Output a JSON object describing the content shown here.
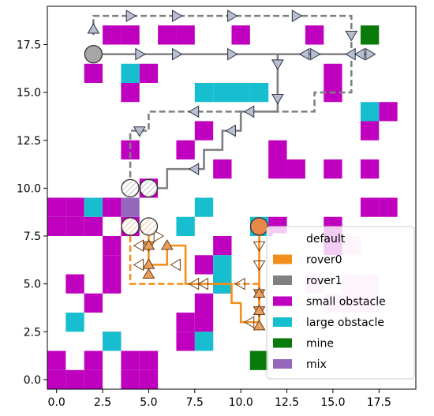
{
  "chart_data": {
    "type": "grid-map",
    "xlim": [
      -0.5,
      19.5
    ],
    "ylim": [
      -0.5,
      19.5
    ],
    "xticks": [
      0.0,
      2.5,
      5.0,
      7.5,
      10.0,
      12.5,
      15.0,
      17.5
    ],
    "yticks": [
      0.0,
      2.5,
      5.0,
      7.5,
      10.0,
      12.5,
      15.0,
      17.5
    ],
    "xtick_labels": [
      "0.0",
      "2.5",
      "5.0",
      "7.5",
      "10.0",
      "12.5",
      "15.0",
      "17.5"
    ],
    "ytick_labels": [
      "0.0",
      "2.5",
      "5.0",
      "7.5",
      "10.0",
      "12.5",
      "15.0",
      "17.5"
    ],
    "legend_position": "lower-right",
    "legend": [
      {
        "label": "default",
        "kind": "patch",
        "color": "#ffffff"
      },
      {
        "label": "rover0",
        "kind": "patch",
        "color": "#f28e1c"
      },
      {
        "label": "rover1",
        "kind": "patch",
        "color": "#808080"
      },
      {
        "label": "small obstacle",
        "kind": "patch",
        "color": "#bf00bf"
      },
      {
        "label": "large obstacle",
        "kind": "patch",
        "color": "#17becf"
      },
      {
        "label": "mine",
        "kind": "patch",
        "color": "#0a7a0a"
      },
      {
        "label": "mix",
        "kind": "patch",
        "color": "#9467bd"
      }
    ],
    "colors": {
      "small": "#bf00bf",
      "large": "#17becf",
      "mine": "#0a7a0a",
      "mix": "#9467bd",
      "rover0": "#f28e1c",
      "rover1": "#808080",
      "rover0_marker": "#e8a060",
      "rover1_marker": "#9aa0b0",
      "faint_small": "#f2c8ee",
      "faint_large": "#c8f2f4"
    },
    "cells": {
      "small": [
        [
          3,
          18
        ],
        [
          4,
          18
        ],
        [
          6,
          18
        ],
        [
          7,
          18
        ],
        [
          10,
          18
        ],
        [
          14,
          18
        ],
        [
          5,
          16
        ],
        [
          2,
          16
        ],
        [
          4,
          15
        ],
        [
          15,
          16
        ],
        [
          15,
          15
        ],
        [
          18,
          14
        ],
        [
          17,
          13
        ],
        [
          8,
          13
        ],
        [
          4,
          12
        ],
        [
          7,
          12
        ],
        [
          12,
          12
        ],
        [
          9,
          11
        ],
        [
          12,
          11
        ],
        [
          13,
          11
        ],
        [
          15,
          11
        ],
        [
          17,
          11
        ],
        [
          5,
          10
        ],
        [
          0,
          9
        ],
        [
          1,
          9
        ],
        [
          3,
          9
        ],
        [
          4,
          8
        ],
        [
          17,
          9
        ],
        [
          18,
          9
        ],
        [
          0,
          8
        ],
        [
          1,
          8
        ],
        [
          2,
          8
        ],
        [
          3,
          7
        ],
        [
          9,
          7
        ],
        [
          12,
          8
        ],
        [
          15,
          8
        ],
        [
          15,
          7
        ],
        [
          3,
          6
        ],
        [
          8,
          6
        ],
        [
          1,
          5
        ],
        [
          3,
          5
        ],
        [
          2,
          4
        ],
        [
          8,
          4
        ],
        [
          9,
          5
        ],
        [
          8,
          3
        ],
        [
          7,
          3
        ],
        [
          7,
          2
        ],
        [
          8,
          2
        ],
        [
          3,
          2
        ],
        [
          2,
          1
        ],
        [
          4,
          1
        ],
        [
          5,
          1
        ],
        [
          0,
          1
        ],
        [
          0,
          0
        ],
        [
          1,
          0
        ],
        [
          2,
          0
        ],
        [
          4,
          0
        ],
        [
          5,
          0
        ]
      ],
      "large": [
        [
          4,
          16
        ],
        [
          8,
          15
        ],
        [
          9,
          15
        ],
        [
          10,
          15
        ],
        [
          11,
          15
        ],
        [
          17,
          14
        ],
        [
          2,
          9
        ],
        [
          8,
          9
        ],
        [
          7,
          8
        ],
        [
          11,
          8
        ],
        [
          9,
          6
        ],
        [
          9,
          5
        ],
        [
          1,
          3
        ],
        [
          3,
          2
        ],
        [
          8,
          2
        ],
        [
          11,
          1
        ]
      ],
      "mine": [
        [
          17,
          18
        ],
        [
          11,
          1
        ]
      ],
      "mix": [
        [
          4,
          9
        ]
      ],
      "faint_small": [
        [
          16,
          7
        ],
        [
          16,
          5
        ],
        [
          17,
          5
        ],
        [
          16,
          4
        ],
        [
          17,
          4
        ],
        [
          15,
          4
        ],
        [
          14,
          5
        ]
      ],
      "faint_large": []
    },
    "series": [
      {
        "name": "rover0",
        "color": "#f28e1c",
        "style": "solid",
        "points": [
          [
            11,
            8
          ],
          [
            11,
            6
          ],
          [
            11,
            5
          ],
          [
            11,
            4
          ],
          [
            11,
            3
          ],
          [
            10.5,
            3
          ],
          [
            10,
            3
          ],
          [
            10,
            4
          ],
          [
            9.5,
            4
          ],
          [
            9.5,
            5
          ],
          [
            8,
            5
          ],
          [
            7,
            5
          ],
          [
            7,
            6
          ],
          [
            7,
            7
          ],
          [
            6,
            7
          ],
          [
            6,
            6
          ],
          [
            5,
            6
          ],
          [
            5,
            7
          ],
          [
            5,
            8
          ]
        ]
      },
      {
        "name": "rover0",
        "color": "#f28e1c",
        "style": "dashed",
        "points": [
          [
            4,
            8
          ],
          [
            4,
            5
          ],
          [
            11,
            5
          ],
          [
            11,
            3
          ]
        ]
      },
      {
        "name": "rover1",
        "color": "#808080",
        "style": "solid",
        "points": [
          [
            2,
            17
          ],
          [
            17,
            17
          ],
          [
            12,
            17
          ],
          [
            12,
            15
          ],
          [
            12,
            14
          ],
          [
            10,
            14
          ],
          [
            10,
            13
          ],
          [
            9,
            13
          ],
          [
            9,
            12
          ],
          [
            8,
            12
          ],
          [
            8,
            11
          ],
          [
            7,
            11
          ],
          [
            6,
            11
          ],
          [
            6,
            10
          ],
          [
            5,
            10
          ]
        ]
      },
      {
        "name": "rover1",
        "color": "#808080",
        "style": "dashed",
        "points": [
          [
            2,
            18
          ],
          [
            2,
            19
          ],
          [
            16,
            19
          ],
          [
            16,
            17
          ],
          [
            16,
            15
          ],
          [
            14,
            15
          ],
          [
            14,
            14
          ],
          [
            5,
            14
          ],
          [
            5,
            13
          ],
          [
            4,
            13
          ],
          [
            4,
            10
          ]
        ]
      }
    ],
    "circles": [
      {
        "x": 2,
        "y": 17,
        "kind": "rover1-start"
      },
      {
        "x": 4,
        "y": 10,
        "kind": "rover1-hatched"
      },
      {
        "x": 5,
        "y": 10,
        "kind": "rover1-hatched"
      },
      {
        "x": 4,
        "y": 8,
        "kind": "rover0-hatched"
      },
      {
        "x": 5,
        "y": 8,
        "kind": "rover0-hatched"
      },
      {
        "x": 11,
        "y": 8,
        "kind": "rover0-start"
      }
    ],
    "triangles": [
      {
        "x": 2,
        "y": 18.3,
        "dir": "up",
        "kind": "rover1"
      },
      {
        "x": 4,
        "y": 19,
        "dir": "right",
        "kind": "rover1"
      },
      {
        "x": 6.5,
        "y": 19,
        "dir": "right",
        "kind": "rover1"
      },
      {
        "x": 9.5,
        "y": 19,
        "dir": "right",
        "kind": "rover1"
      },
      {
        "x": 13,
        "y": 19,
        "dir": "right",
        "kind": "rover1"
      },
      {
        "x": 16,
        "y": 18,
        "dir": "down",
        "kind": "rover1"
      },
      {
        "x": 4.5,
        "y": 17,
        "dir": "right",
        "kind": "rover1"
      },
      {
        "x": 6.5,
        "y": 17,
        "dir": "right",
        "kind": "rover1"
      },
      {
        "x": 9.5,
        "y": 17,
        "dir": "right",
        "kind": "rover1"
      },
      {
        "x": 13.5,
        "y": 17,
        "dir": "left",
        "kind": "rover1"
      },
      {
        "x": 14,
        "y": 17,
        "dir": "right",
        "kind": "rover1"
      },
      {
        "x": 16,
        "y": 17,
        "dir": "left",
        "kind": "rover1"
      },
      {
        "x": 16.5,
        "y": 17,
        "dir": "left",
        "kind": "rover1"
      },
      {
        "x": 17,
        "y": 17,
        "dir": "right",
        "kind": "rover1"
      },
      {
        "x": 12,
        "y": 16.5,
        "dir": "down",
        "kind": "rover1"
      },
      {
        "x": 12,
        "y": 14.7,
        "dir": "down",
        "kind": "rover1"
      },
      {
        "x": 10.5,
        "y": 14,
        "dir": "left",
        "kind": "rover1"
      },
      {
        "x": 9.5,
        "y": 13,
        "dir": "left",
        "kind": "rover1"
      },
      {
        "x": 7.5,
        "y": 11,
        "dir": "left",
        "kind": "rover1"
      },
      {
        "x": 7.5,
        "y": 14,
        "dir": "left",
        "kind": "rover1"
      },
      {
        "x": 4.5,
        "y": 13,
        "dir": "down",
        "kind": "rover1"
      },
      {
        "x": 11,
        "y": 7,
        "dir": "down",
        "kind": "rover0"
      },
      {
        "x": 11,
        "y": 6,
        "dir": "down",
        "kind": "rover0"
      },
      {
        "x": 11,
        "y": 4.5,
        "dir": "downup",
        "kind": "rover0"
      },
      {
        "x": 11,
        "y": 3.6,
        "dir": "downup",
        "kind": "rover0"
      },
      {
        "x": 11,
        "y": 2.8,
        "dir": "up",
        "kind": "rover0"
      },
      {
        "x": 10.5,
        "y": 3,
        "dir": "left",
        "kind": "rover0"
      },
      {
        "x": 10,
        "y": 5,
        "dir": "left",
        "kind": "rover0"
      },
      {
        "x": 8,
        "y": 5,
        "dir": "left",
        "kind": "rover0"
      },
      {
        "x": 7.5,
        "y": 5,
        "dir": "left",
        "kind": "rover0"
      },
      {
        "x": 6.5,
        "y": 6,
        "dir": "left",
        "kind": "rover0"
      },
      {
        "x": 6,
        "y": 7,
        "dir": "up",
        "kind": "rover0"
      },
      {
        "x": 5,
        "y": 7,
        "dir": "downup",
        "kind": "rover0"
      },
      {
        "x": 5,
        "y": 6,
        "dir": "up",
        "kind": "rover0"
      },
      {
        "x": 5,
        "y": 5.5,
        "dir": "up",
        "kind": "rover0"
      },
      {
        "x": 4.5,
        "y": 7,
        "dir": "left",
        "kind": "rover0"
      },
      {
        "x": 5.5,
        "y": 7.5,
        "dir": "right",
        "kind": "rover0"
      },
      {
        "x": 4.5,
        "y": 6,
        "dir": "left",
        "kind": "rover0"
      }
    ]
  }
}
